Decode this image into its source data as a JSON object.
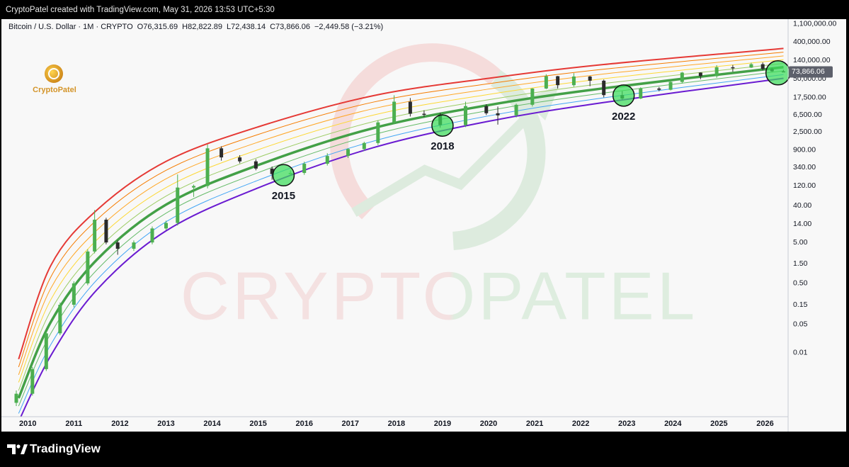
{
  "header": {
    "credit": "CryptoPatel created with TradingView.com, May 31, 2026 13:53 UTC+5:30"
  },
  "footer": {
    "brand": "TradingView"
  },
  "chart_data": {
    "type": "candlestick",
    "symbol": "Bitcoin / U.S. Dollar · 1M · CRYPTO",
    "ohlc_labels": [
      "O76,315.69",
      "H82,822.89",
      "L72,438.14",
      "C73,866.06"
    ],
    "change_label": "−2,449.58 (−3.21%)",
    "logo_text": "CryptoPatel",
    "watermark": "CRYPTOPATEL",
    "log_scale": true,
    "grid": false,
    "xlim": [
      2009.55,
      2026.5
    ],
    "xticks": [
      2010,
      2011,
      2012,
      2013,
      2014,
      2015,
      2016,
      2017,
      2018,
      2019,
      2020,
      2021,
      2022,
      2023,
      2024,
      2025,
      2026
    ],
    "ylim": [
      0.000275,
      1440000
    ],
    "yticks": [
      {
        "value": 1100000,
        "label": "1,100,000.00"
      },
      {
        "value": 400000,
        "label": "400,000.00"
      },
      {
        "value": 140000,
        "label": "140,000.00"
      },
      {
        "value": 50000,
        "label": "50,000.00"
      },
      {
        "value": 17500,
        "label": "17,500.00"
      },
      {
        "value": 6500,
        "label": "6,500.00"
      },
      {
        "value": 2500,
        "label": "2,500.00"
      },
      {
        "value": 900,
        "label": "900.00"
      },
      {
        "value": 340,
        "label": "340.00"
      },
      {
        "value": 120,
        "label": "120.00"
      },
      {
        "value": 40,
        "label": "40.00"
      },
      {
        "value": 14,
        "label": "14.00"
      },
      {
        "value": 5,
        "label": "5.00"
      },
      {
        "value": 1.5,
        "label": "1.50"
      },
      {
        "value": 0.5,
        "label": "0.50"
      },
      0.15,
      0.05,
      0.01
    ],
    "up_color": "#4caf50",
    "down_color": "#2b2b2b",
    "candles": {
      "x": [
        2009.75,
        2010.1,
        2010.4,
        2010.7,
        2011.0,
        2011.3,
        2011.45,
        2011.7,
        2011.95,
        2012.3,
        2012.7,
        2013.0,
        2013.25,
        2013.6,
        2013.9,
        2014.2,
        2014.6,
        2014.95,
        2015.3,
        2015.7,
        2016.0,
        2016.5,
        2016.95,
        2017.3,
        2017.6,
        2017.95,
        2018.3,
        2018.6,
        2018.95,
        2019.5,
        2019.95,
        2020.2,
        2020.6,
        2020.95,
        2021.25,
        2021.5,
        2021.85,
        2022.2,
        2022.5,
        2022.9,
        2023.3,
        2023.7,
        2023.95,
        2024.2,
        2024.6,
        2024.95,
        2025.3,
        2025.7,
        2025.95,
        2026.15,
        2026.4
      ],
      "open": [
        0.0006,
        0.001,
        0.004,
        0.03,
        0.15,
        0.5,
        3,
        18,
        5,
        3.5,
        5,
        11,
        15,
        110,
        120,
        1000,
        600,
        480,
        320,
        235,
        250,
        420,
        650,
        960,
        1350,
        4300,
        13800,
        7000,
        6600,
        3700,
        10800,
        7200,
        6400,
        11600,
        29000,
        58000,
        35000,
        57000,
        45000,
        20000,
        16500,
        29000,
        27000,
        42000,
        71000,
        58000,
        96000,
        94000,
        114000,
        87000,
        76315.69
      ],
      "high": [
        0.0012,
        0.0045,
        0.034,
        0.17,
        0.56,
        3.4,
        31,
        20,
        5.6,
        5.6,
        12.3,
        17,
        230,
        130,
        1250,
        1120,
        680,
        540,
        360,
        290,
        470,
        760,
        1000,
        1450,
        4800,
        19800,
        17000,
        8500,
        7400,
        13800,
        12000,
        10500,
        12400,
        29500,
        64800,
        59000,
        69000,
        59000,
        48000,
        25000,
        31000,
        31500,
        44700,
        73800,
        72000,
        108000,
        109000,
        124000,
        126000,
        94000,
        82822.89
      ],
      "low": [
        0.0005,
        0.0009,
        0.0036,
        0.027,
        0.13,
        0.45,
        2.7,
        4.5,
        2.5,
        3.1,
        4.5,
        10,
        13,
        65,
        105,
        500,
        430,
        290,
        170,
        210,
        225,
        380,
        580,
        860,
        1200,
        3900,
        6000,
        5800,
        3200,
        3300,
        6500,
        3800,
        5700,
        10500,
        28000,
        29000,
        32000,
        33000,
        17600,
        15500,
        16000,
        24800,
        26000,
        38500,
        49000,
        53000,
        74500,
        92000,
        80500,
        74000,
        72438.14
      ],
      "close": [
        0.001,
        0.004,
        0.03,
        0.15,
        0.5,
        3,
        18,
        5,
        3.5,
        5,
        11,
        15,
        110,
        120,
        1000,
        600,
        480,
        320,
        235,
        250,
        420,
        650,
        960,
        1350,
        4300,
        13800,
        7000,
        6600,
        3700,
        10800,
        7200,
        6400,
        11600,
        29000,
        58000,
        35000,
        57000,
        45000,
        20000,
        16500,
        29000,
        27000,
        42000,
        71000,
        58000,
        96000,
        94000,
        114000,
        87000,
        76300,
        73866.06
      ]
    },
    "bands": {
      "x": [
        2009.8,
        2010.5,
        2011.5,
        2013,
        2015,
        2017.5,
        2020,
        2022.5,
        2026.4
      ],
      "series": [
        {
          "color": "#e53935",
          "line_width": 2,
          "values": [
            0.007,
            1.37,
            31,
            480,
            3350,
            19400,
            51500,
            112000,
            276000
          ]
        },
        {
          "color": "#f57c00",
          "line_width": 1,
          "values": [
            0.0045,
            0.72,
            18,
            290,
            2180,
            13500,
            38000,
            86100,
            224000
          ]
        },
        {
          "color": "#ffa726",
          "line_width": 1,
          "values": [
            0.0029,
            0.38,
            10,
            180,
            1420,
            9330,
            28100,
            65800,
            182000
          ]
        },
        {
          "color": "#fdd835",
          "line_width": 1,
          "values": [
            0.0019,
            0.2,
            5.8,
            110,
            925,
            6490,
            20800,
            50400,
            147000
          ]
        },
        {
          "color": "#9ccc65",
          "line_width": 1,
          "values": [
            0.0012,
            0.108,
            3.3,
            68,
            600,
            4500,
            15400,
            38500,
            119000
          ]
        },
        {
          "color": "#43a047",
          "line_width": 3.5,
          "values": [
            0.00078,
            0.057,
            1.9,
            42,
            390,
            3120,
            11400,
            29400,
            96600
          ]
        },
        {
          "color": "#66bb6a",
          "line_width": 1,
          "values": [
            0.0005,
            0.03,
            1.07,
            26,
            255,
            2160,
            8390,
            22500,
            78300
          ]
        },
        {
          "color": "#42a5f5",
          "line_width": 1,
          "values": [
            0.00033,
            0.016,
            0.61,
            16,
            166,
            1500,
            6200,
            17200,
            63500
          ]
        },
        {
          "color": "#6a1bd1",
          "line_width": 2,
          "values": [
            0.00021,
            0.0086,
            0.35,
            9.6,
            108,
            1040,
            4580,
            13200,
            51500
          ]
        }
      ]
    },
    "annotations": [
      {
        "text": "2015",
        "x": 2015.55,
        "y": 220
      },
      {
        "text": "2018",
        "x": 2019.0,
        "y": 3600
      },
      {
        "text": "2022",
        "x": 2022.93,
        "y": 19500
      },
      {
        "x": 2026.28,
        "y": 70000
      }
    ],
    "price_label": {
      "value": 73866.06,
      "label": "73,866.06"
    }
  }
}
